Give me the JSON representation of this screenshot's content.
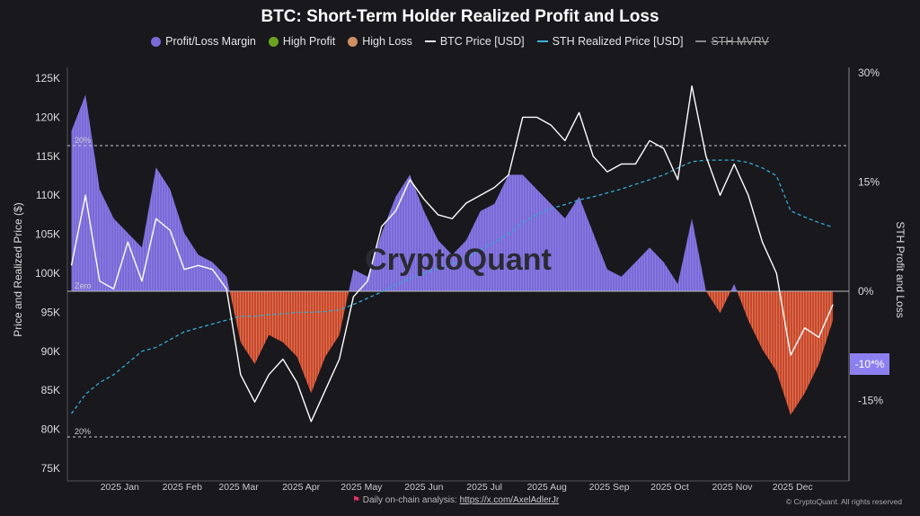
{
  "chart_data": {
    "type": "line",
    "title": "BTC: Short-Term Holder Realized Profit and Loss",
    "ylabel": "Price and Realized Price ($)",
    "ylabel_right": "STH Profit and Loss",
    "ylim": [
      75000,
      125000
    ],
    "ylim_right": [
      -25,
      30
    ],
    "y_ticks": [
      "125K",
      "120K",
      "115K",
      "110K",
      "105K",
      "100K",
      "95K",
      "90K",
      "85K",
      "80K",
      "75K"
    ],
    "y_right_ticks": [
      "30%",
      "15%",
      "0%",
      "-15%"
    ],
    "x_ticks": [
      "2025 Jan",
      "2025 Feb",
      "2025 Mar",
      "2025 Apr",
      "2025 May",
      "2025 Jun",
      "2025 Jul",
      "2025 Aug",
      "2025 Sep",
      "2025 Oct",
      "2025 Nov",
      "2025 Dec"
    ],
    "x_tick_dates": [
      "2025-01-01",
      "2025-02-01",
      "2025-03-01",
      "2025-04-01",
      "2025-05-01",
      "2025-06-01",
      "2025-07-01",
      "2025-08-01",
      "2025-09-01",
      "2025-10-01",
      "2025-11-01",
      "2025-12-01"
    ],
    "x_range": [
      "2024-12-06",
      "2025-12-29"
    ],
    "reference_lines": [
      {
        "value": 20,
        "label": "20%"
      },
      {
        "value": 0,
        "label": "Zero"
      },
      {
        "value": -20,
        "label": "20%"
      }
    ],
    "current_badge": "-10*%",
    "legend": [
      "Profit/Loss Margin",
      "High Profit",
      "High Loss",
      "BTC Price [USD]",
      "STH Realized Price [USD]",
      "STH MVRV"
    ],
    "legend_placement": "top",
    "colors": {
      "profit": "#7a6ad8",
      "high_profit": "#6aa321",
      "high_loss": "#cf8f63",
      "loss": "#c9472a",
      "btc": "#ffffff",
      "sth": "#36a9cf",
      "mvrv": "#999999"
    },
    "dates": [
      "2024-12-08",
      "2024-12-15",
      "2024-12-22",
      "2024-12-29",
      "2025-01-05",
      "2025-01-12",
      "2025-01-19",
      "2025-01-26",
      "2025-02-02",
      "2025-02-09",
      "2025-02-16",
      "2025-02-23",
      "2025-03-02",
      "2025-03-09",
      "2025-03-16",
      "2025-03-23",
      "2025-03-30",
      "2025-04-06",
      "2025-04-13",
      "2025-04-20",
      "2025-04-27",
      "2025-05-04",
      "2025-05-11",
      "2025-05-18",
      "2025-05-25",
      "2025-06-01",
      "2025-06-08",
      "2025-06-15",
      "2025-06-22",
      "2025-06-29",
      "2025-07-06",
      "2025-07-13",
      "2025-07-20",
      "2025-07-27",
      "2025-08-03",
      "2025-08-10",
      "2025-08-17",
      "2025-08-24",
      "2025-08-31",
      "2025-09-07",
      "2025-09-14",
      "2025-09-21",
      "2025-09-28",
      "2025-10-05",
      "2025-10-12",
      "2025-10-19",
      "2025-10-26",
      "2025-11-02",
      "2025-11-09",
      "2025-11-16",
      "2025-11-23",
      "2025-11-30",
      "2025-12-07",
      "2025-12-14",
      "2025-12-21"
    ],
    "series": [
      {
        "name": "BTC Price [USD]",
        "values": [
          101000,
          110000,
          99000,
          98000,
          104000,
          99000,
          107000,
          105500,
          100500,
          101000,
          100500,
          98000,
          87000,
          83500,
          87000,
          89000,
          86000,
          81000,
          85000,
          89000,
          97000,
          99000,
          106000,
          108000,
          112000,
          109500,
          107500,
          107000,
          109000,
          110000,
          111000,
          112600,
          120000,
          120000,
          119000,
          117000,
          120600,
          115000,
          113000,
          114000,
          114000,
          117000,
          116000,
          112000,
          124000,
          115000,
          110000,
          114000,
          110000,
          104000,
          100000,
          89500,
          93000,
          91800,
          96000
        ]
      },
      {
        "name": "STH Realized Price [USD]",
        "values": [
          82000,
          84500,
          86000,
          87000,
          88500,
          90000,
          90500,
          91500,
          92500,
          93000,
          93500,
          94000,
          94500,
          94500,
          94700,
          94800,
          95000,
          95000,
          95100,
          95300,
          96000,
          96800,
          97600,
          98500,
          99300,
          100000,
          100600,
          101200,
          102000,
          103000,
          104000,
          105000,
          106500,
          107500,
          108300,
          108800,
          109400,
          109800,
          110300,
          110800,
          111400,
          112000,
          112600,
          113500,
          114300,
          114500,
          114500,
          114500,
          114200,
          113500,
          112500,
          108000,
          107200,
          106500,
          105900
        ]
      },
      {
        "name": "Profit/Loss Margin",
        "unit": "%",
        "values": [
          22,
          27,
          14,
          10,
          8,
          6,
          17,
          14,
          8,
          5,
          4,
          2,
          -7,
          -10,
          -6,
          -7,
          -9,
          -14,
          -9,
          -6,
          3,
          2,
          8,
          13,
          16,
          11,
          7,
          5,
          7,
          11,
          12,
          16,
          16,
          14,
          12,
          10,
          13,
          8,
          3,
          2,
          4,
          6,
          4,
          1,
          10,
          0,
          -3,
          1,
          -4,
          -8,
          -11,
          -17,
          -14,
          -10,
          -4
        ]
      }
    ]
  },
  "footer": {
    "text": "Daily on-chain analysis:",
    "link": "https://x.com/AxelAdlerJr",
    "copyright": "© CryptoQuant. All rights reserved"
  }
}
